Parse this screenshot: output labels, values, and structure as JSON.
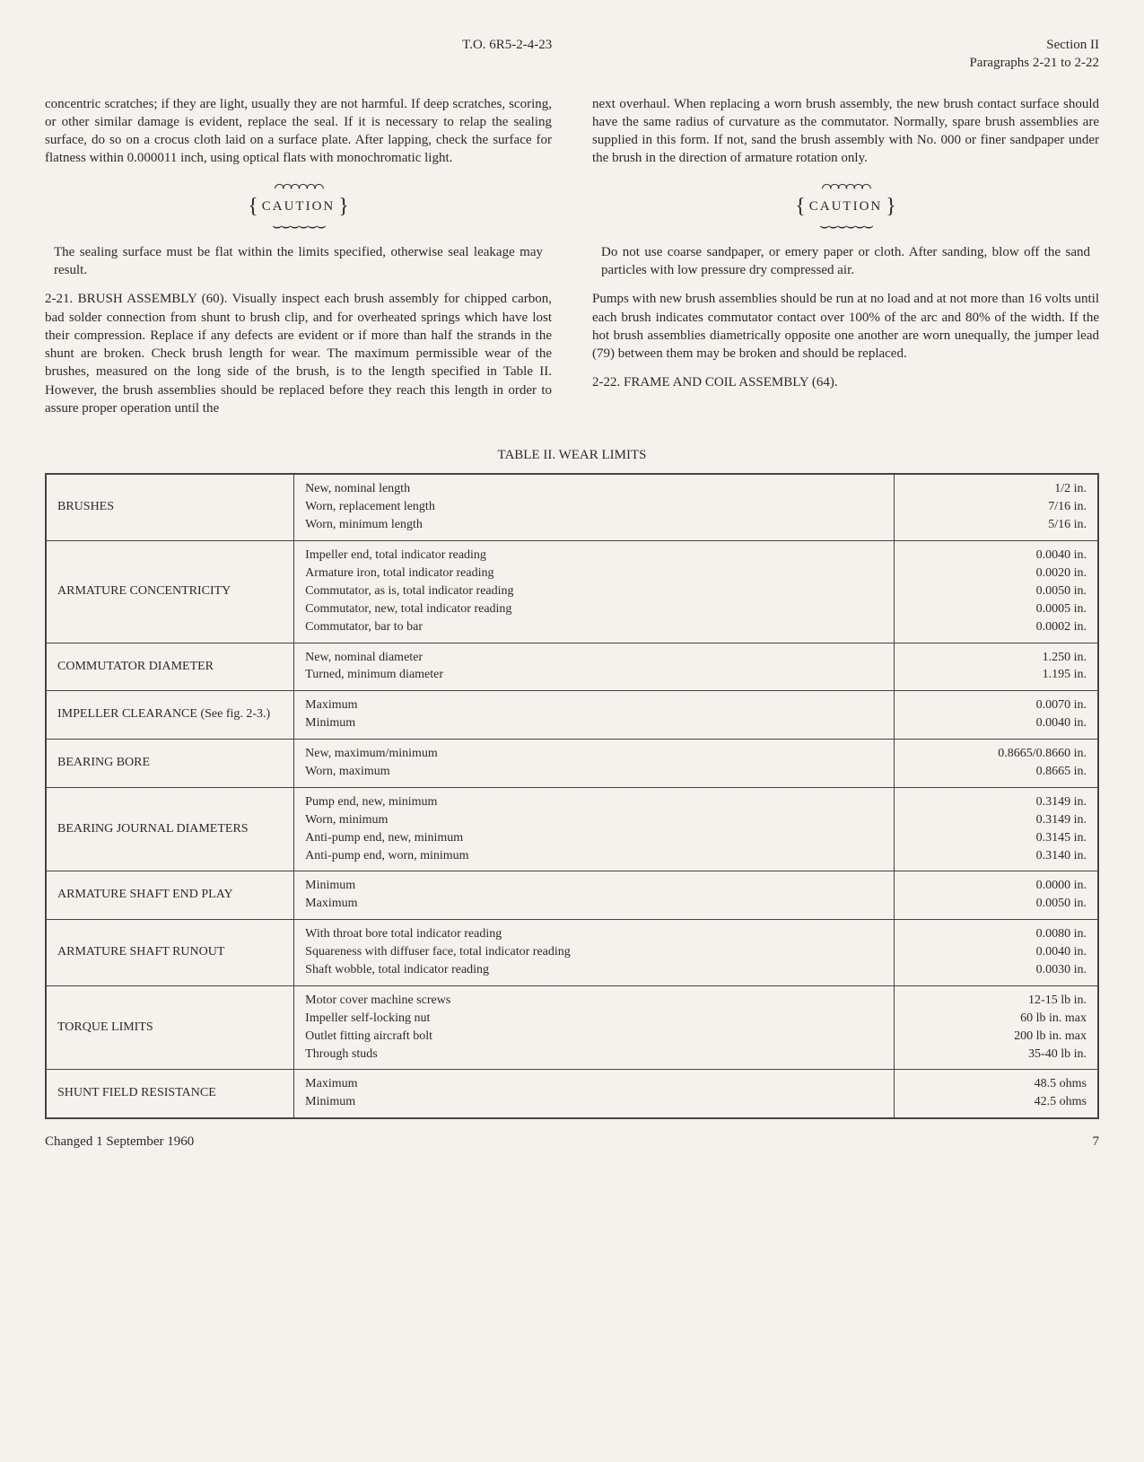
{
  "header": {
    "doc_id": "T.O. 6R5-2-4-23",
    "section": "Section II",
    "paragraphs": "Paragraphs 2-21 to 2-22"
  },
  "col_left": {
    "p1": "concentric scratches; if they are light, usually they are not harmful. If deep scratches, scoring, or other similar damage is evident, replace the seal. If it is necessary to relap the sealing surface, do so on a crocus cloth laid on a surface plate. After lapping, check the surface for flatness within 0.000011 inch, using optical flats with monochromatic light.",
    "caution_label": "CAUTION",
    "caution_text": "The sealing surface must be flat within the limits specified, otherwise seal leakage may result.",
    "p2": "2-21. BRUSH ASSEMBLY (60). Visually inspect each brush assembly for chipped carbon, bad solder connection from shunt to brush clip, and for overheated springs which have lost their compression. Replace if any defects are evident or if more than half the strands in the shunt are broken. Check brush length for wear. The maximum permissible wear of the brushes, measured on the long side of the brush, is to the length specified in Table II. However, the brush assemblies should be replaced before they reach this length in order to assure proper operation until the"
  },
  "col_right": {
    "p1": "next overhaul. When replacing a worn brush assembly, the new brush contact surface should have the same radius of curvature as the commutator. Normally, spare brush assemblies are supplied in this form. If not, sand the brush assembly with No. 000 or finer sandpaper under the brush in the direction of armature rotation only.",
    "caution_label": "CAUTION",
    "caution_text": "Do not use coarse sandpaper, or emery paper or cloth. After sanding, blow off the sand particles with low pressure dry compressed air.",
    "p2": "Pumps with new brush assemblies should be run at no load and at not more than 16 volts until each brush indicates commutator contact over 100% of the arc and 80% of the width. If the hot brush assemblies diametrically opposite one another are worn unequally, the jumper lead (79) between them may be broken and should be replaced.",
    "p3": "2-22. FRAME AND COIL ASSEMBLY (64)."
  },
  "table": {
    "title": "TABLE II.   WEAR LIMITS",
    "rows": [
      {
        "label": "BRUSHES",
        "descs": [
          "New, nominal length",
          "Worn, replacement length",
          "Worn, minimum length"
        ],
        "vals": [
          "1/2 in.",
          "7/16 in.",
          "5/16 in."
        ]
      },
      {
        "label": "ARMATURE CONCENTRICITY",
        "descs": [
          "Impeller end, total indicator reading",
          "Armature iron, total indicator reading",
          "Commutator, as is, total indicator reading",
          "Commutator, new, total indicator reading",
          "Commutator, bar to bar"
        ],
        "vals": [
          "0.0040 in.",
          "0.0020 in.",
          "0.0050 in.",
          "0.0005 in.",
          "0.0002 in."
        ]
      },
      {
        "label": "COMMUTATOR DIAMETER",
        "descs": [
          "New, nominal diameter",
          "Turned, minimum diameter"
        ],
        "vals": [
          "1.250 in.",
          "1.195 in."
        ]
      },
      {
        "label": "IMPELLER CLEARANCE (See fig. 2-3.)",
        "descs": [
          "Maximum",
          "Minimum"
        ],
        "vals": [
          "0.0070 in.",
          "0.0040 in."
        ]
      },
      {
        "label": "BEARING BORE",
        "descs": [
          "New, maximum/minimum",
          "Worn, maximum"
        ],
        "vals": [
          "0.8665/0.8660 in.",
          "0.8665 in."
        ]
      },
      {
        "label": "BEARING JOURNAL DIAMETERS",
        "descs": [
          "Pump end, new, minimum",
          "Worn, minimum",
          "Anti-pump end, new, minimum",
          "Anti-pump end, worn, minimum"
        ],
        "vals": [
          "0.3149 in.",
          "0.3149 in.",
          "0.3145 in.",
          "0.3140 in."
        ]
      },
      {
        "label": "ARMATURE SHAFT END PLAY",
        "descs": [
          "Minimum",
          "Maximum"
        ],
        "vals": [
          "0.0000 in.",
          "0.0050 in."
        ]
      },
      {
        "label": "ARMATURE SHAFT RUNOUT",
        "descs": [
          "With throat bore total indicator reading",
          "Squareness with diffuser face, total indicator reading",
          "Shaft wobble, total indicator reading"
        ],
        "vals": [
          "0.0080 in.",
          "0.0040 in.",
          "0.0030 in."
        ]
      },
      {
        "label": "TORQUE LIMITS",
        "descs": [
          "Motor cover machine screws",
          "Impeller self-locking nut",
          "Outlet fitting aircraft bolt",
          "Through studs"
        ],
        "vals": [
          "12-15 lb in.",
          "60 lb in. max",
          "200 lb in. max",
          "35-40 lb in."
        ]
      },
      {
        "label": "SHUNT FIELD RESISTANCE",
        "descs": [
          "Maximum",
          "Minimum"
        ],
        "vals": [
          "48.5 ohms",
          "42.5 ohms"
        ]
      }
    ]
  },
  "footer": {
    "changed": "Changed 1 September 1960",
    "page": "7"
  }
}
